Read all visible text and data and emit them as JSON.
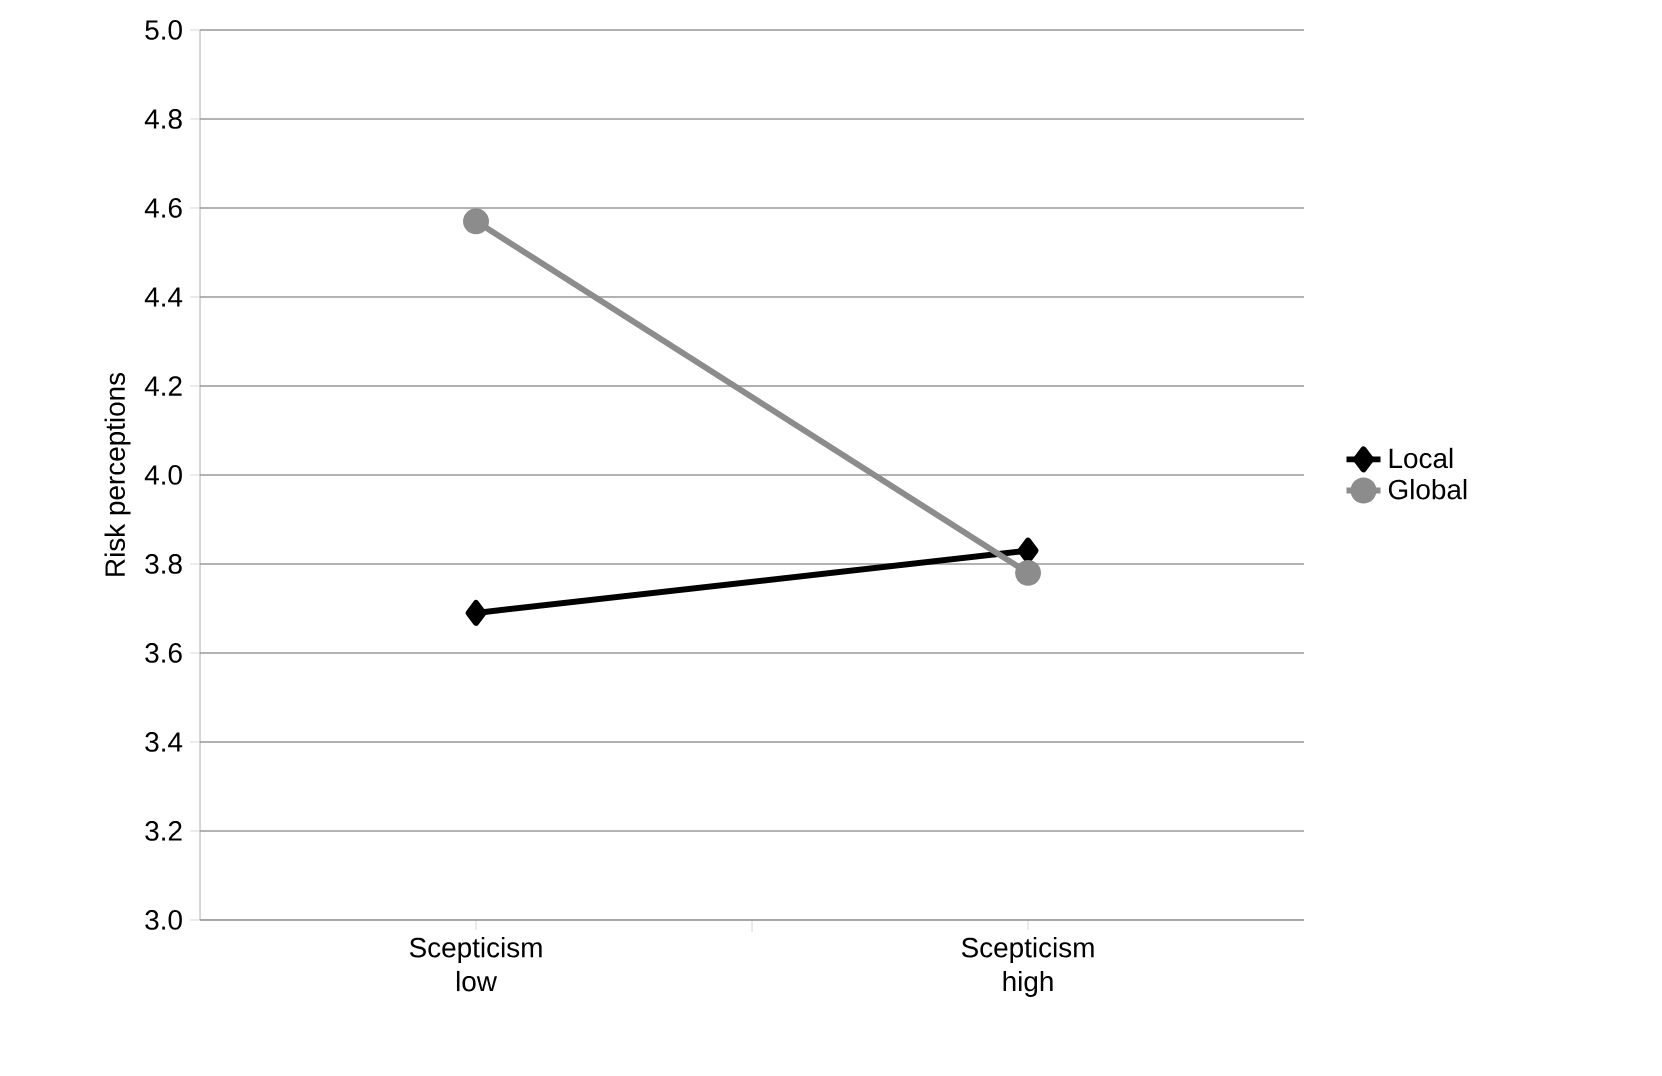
{
  "chart_data": {
    "type": "line",
    "ylabel": "Risk perceptions",
    "categories": [
      "Scepticism low",
      "Scepticism high"
    ],
    "series": [
      {
        "name": "Local",
        "color": "#000000",
        "values": [
          3.69,
          3.83
        ],
        "marker": "diamond"
      },
      {
        "name": "Global",
        "color": "#8c8c8c",
        "values": [
          4.57,
          3.78
        ],
        "marker": "circle"
      }
    ],
    "ylim": [
      3.0,
      5.0
    ],
    "yticks": [
      {
        "value": 3,
        "label": "3.0"
      },
      3.2,
      3.4,
      3.6,
      3.8,
      {
        "value": 4,
        "label": "4.0"
      },
      4.2,
      4.4,
      4.6,
      4.8,
      {
        "value": 5,
        "label": "5.0"
      }
    ],
    "grid": "y",
    "legend": "right"
  }
}
